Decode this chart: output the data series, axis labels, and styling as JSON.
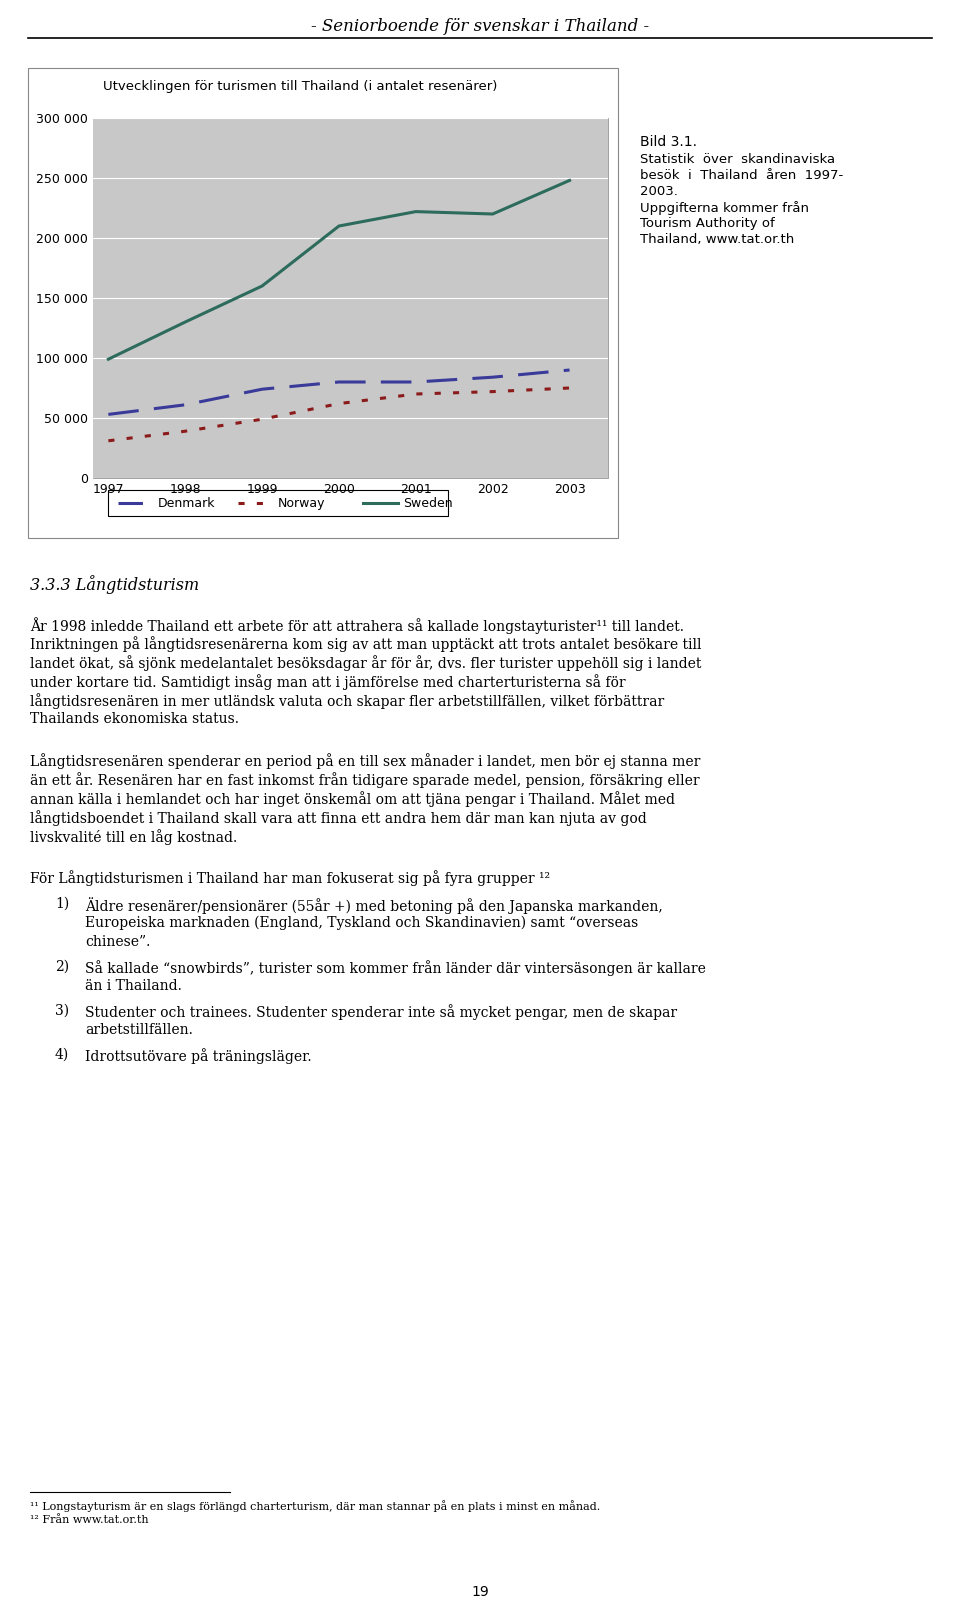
{
  "page_title": "- Seniorboende för svenskar i Thailand -",
  "chart_title": "Utvecklingen för turismen till Thailand (i antalet resenärer)",
  "years": [
    1997,
    1998,
    1999,
    2000,
    2001,
    2002,
    2003
  ],
  "denmark": [
    53000,
    61000,
    74000,
    80000,
    80000,
    84000,
    90000
  ],
  "norway": [
    31000,
    39000,
    49000,
    62000,
    70000,
    72000,
    75000
  ],
  "sweden": [
    99000,
    130000,
    160000,
    210000,
    222000,
    220000,
    248000
  ],
  "ylim": [
    0,
    300000
  ],
  "yticks": [
    0,
    50000,
    100000,
    150000,
    200000,
    250000,
    300000
  ],
  "ytick_labels": [
    "0",
    "50 000",
    "100 000",
    "150 000",
    "200 000",
    "250 000",
    "300 000"
  ],
  "chart_bg": "#c8c8c8",
  "denmark_color": "#3a3a9a",
  "norway_color": "#8b1a1a",
  "sweden_color": "#2d6b5c",
  "section_heading": "3.3.3 Långtidsturism",
  "bild_line1": "Bild 3.1.",
  "bild_line2": "Statistik över skandinaviska besök i Thailand åren 1997-2003.",
  "bild_line3": "Uppgifterna kommer från Tourism Authority of Thailand, www.tat.or.th",
  "para1_lines": [
    "År 1998 inledde Thailand ett arbete för att attrahera så kallade longstayturister¹¹ till landet.",
    "Inriktningen på långtidsresenärerna kom sig av att man upptäckt att trots antalet besökare till",
    "landet ökat, så sjönk medelantalet besöksdagar år för år, dvs. fler turister uppehöll sig i landet",
    "under kortare tid. Samtidigt insåg man att i jämförelse med charterturisterna så för",
    "långtidsresenären in mer utländsk valuta och skapar fler arbetstillfällen, vilket förbättrar",
    "Thailands ekonomiska status."
  ],
  "para2_lines": [
    "Långtidsresenären spenderar en period på en till sex månader i landet, men bör ej stanna mer",
    "än ett år. Resenären har en fast inkomst från tidigare sparade medel, pension, försäkring eller",
    "annan källa i hemlandet och har inget önskemål om att tjäna pengar i Thailand. Målet med",
    "långtidsboendet i Thailand skall vara att finna ett andra hem där man kan njuta av god",
    "livskvalité till en låg kostnad."
  ],
  "para3_intro": "För Långtidsturismen i Thailand har man fokuserat sig på fyra grupper ¹²",
  "list_item1_lines": [
    "Äldre resenärer/pensionärer (55år +) med betoning på den Japanska markanden,",
    "Europeiska marknaden (England, Tyskland och Skandinavien) samt “overseas",
    "chinese”."
  ],
  "list_item2_lines": [
    "Så kallade “snowbirds”, turister som kommer från länder där vintersäsongen är kallare",
    "än i Thailand."
  ],
  "list_item3_lines": [
    "Studenter och trainees. Studenter spenderar inte så mycket pengar, men de skapar",
    "arbetstillfällen."
  ],
  "list_item4_lines": [
    "Idrottsutövare på träningsläger."
  ],
  "footnote1": "¹¹ Longstayturism är en slags förlängd charterturism, där man stannar på en plats i minst en månad.",
  "footnote2": "¹² Från www.tat.or.th",
  "page_number": "19",
  "background_color": "#ffffff"
}
